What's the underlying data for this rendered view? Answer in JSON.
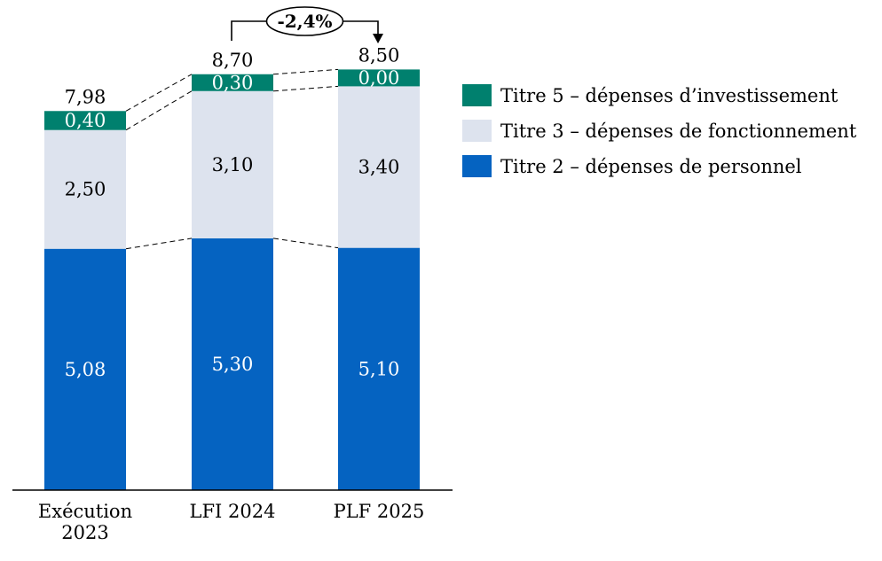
{
  "chart_data": {
    "type": "bar",
    "stacked": true,
    "categories": [
      [
        "Exécution",
        "2023"
      ],
      [
        "LFI 2024"
      ],
      [
        "PLF 2025"
      ]
    ],
    "series": [
      {
        "name": "Titre 2 – dépenses de personnel",
        "values": [
          5.08,
          5.3,
          5.1
        ],
        "labels": [
          "5,08",
          "5,30",
          "5,10"
        ],
        "color": "#0563c1",
        "label_color": "#ffffff"
      },
      {
        "name": "Titre 3 – dépenses de fonctionnement",
        "values": [
          2.5,
          3.1,
          3.4
        ],
        "labels": [
          "2,50",
          "3,10",
          "3,40"
        ],
        "color": "#dde3ee",
        "label_color": "#000000"
      },
      {
        "name": "Titre 5 – dépenses d’investissement",
        "values": [
          0.4,
          0.3,
          0.0
        ],
        "labels": [
          "0,40",
          "0,30",
          "0,00"
        ],
        "color": "#00806e",
        "label_color": "#ffffff"
      }
    ],
    "totals": [
      "7,98",
      "8,70",
      "8,50"
    ],
    "legend_order": [
      2,
      1,
      0
    ],
    "legend_position": "right",
    "grid": false,
    "ylim": [
      0,
      10
    ],
    "change_annotation": {
      "text": "-2,4%",
      "from_index": 1,
      "to_index": 2
    }
  }
}
